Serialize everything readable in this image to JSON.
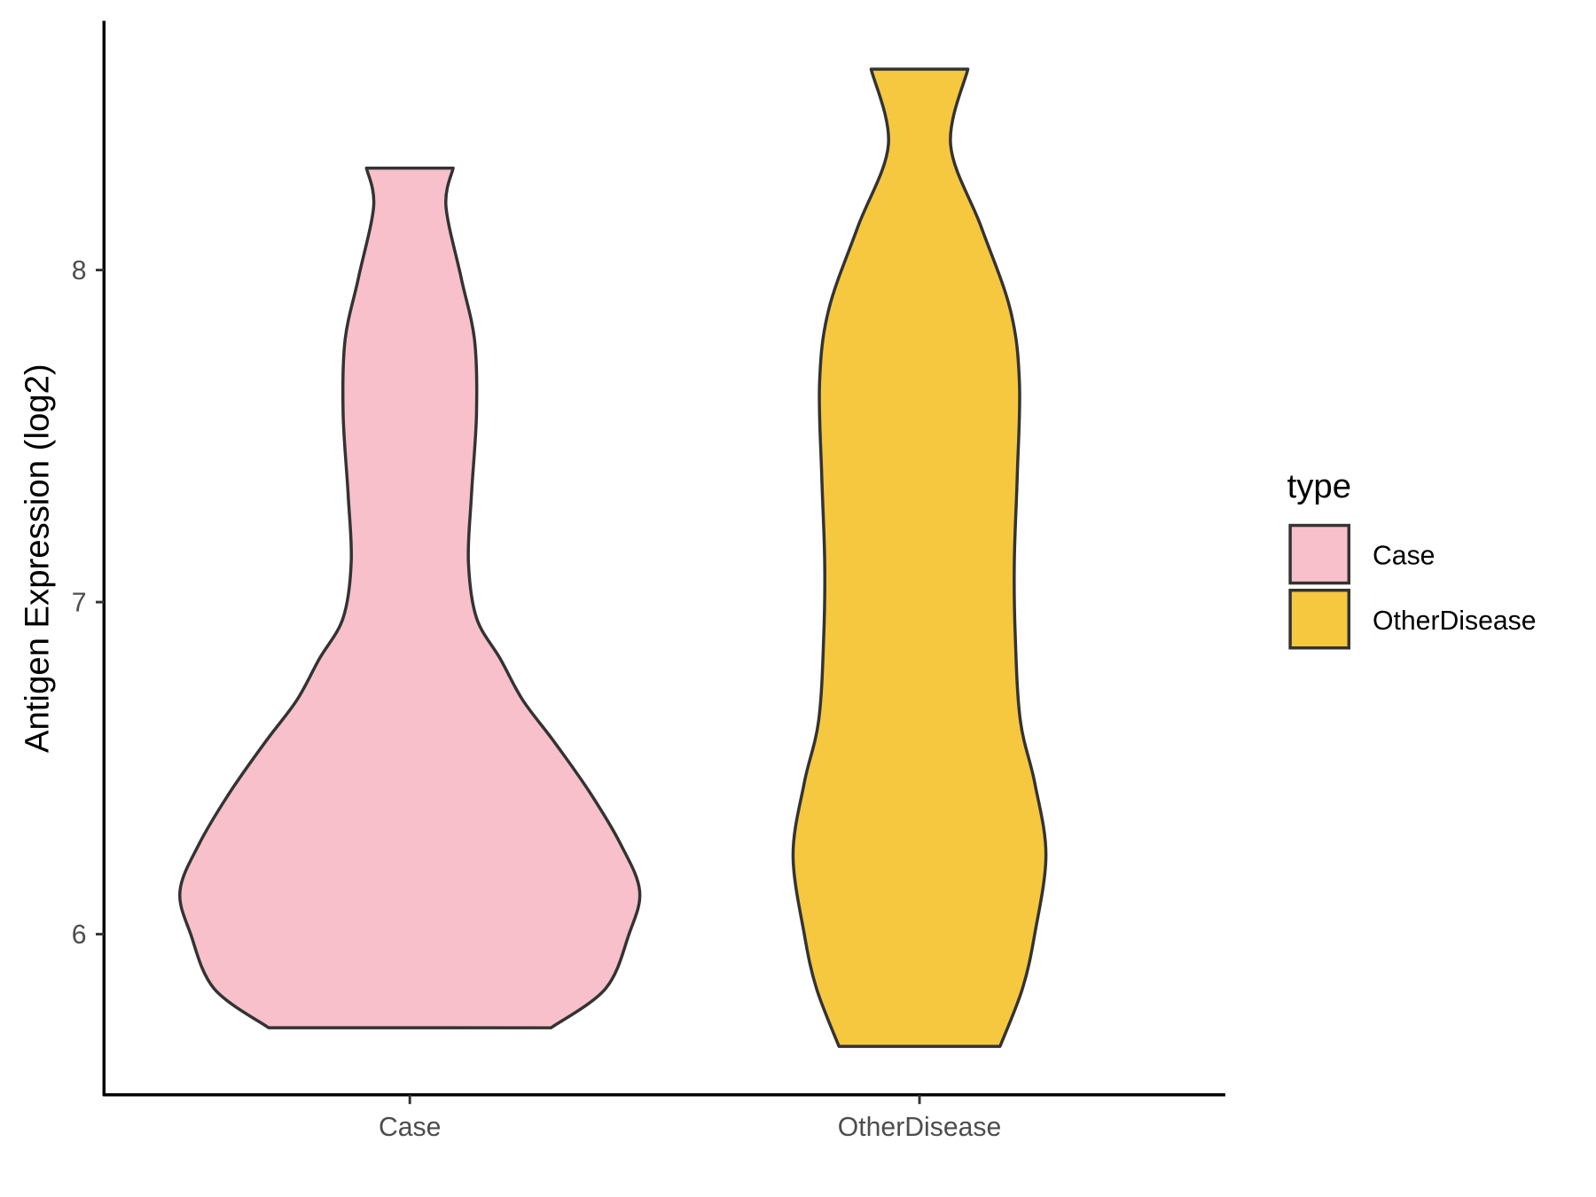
{
  "chart_data": {
    "type": "violin",
    "title": "",
    "xlabel": "",
    "ylabel": "Antigen Expression (log2)",
    "categories": [
      "Case",
      "OtherDisease"
    ],
    "yticks": [
      6,
      7,
      8
    ],
    "ylim": [
      5.52,
      8.75
    ],
    "grid": false,
    "legend": {
      "title": "type",
      "position": "right",
      "entries": [
        "Case",
        "OtherDisease"
      ]
    },
    "series": [
      {
        "name": "Case",
        "color": "#F7C0CB",
        "min": 5.72,
        "max": 8.31,
        "profile_y": [
          5.718,
          5.836,
          6.0,
          6.13,
          6.27,
          6.425,
          6.58,
          6.704,
          6.828,
          6.952,
          7.122,
          7.324,
          7.572,
          7.789,
          7.975,
          8.192,
          8.307
        ],
        "profile_halfwidth": [
          0.277,
          0.384,
          0.43,
          0.451,
          0.414,
          0.354,
          0.283,
          0.222,
          0.178,
          0.131,
          0.115,
          0.121,
          0.131,
          0.127,
          0.101,
          0.071,
          0.085
        ]
      },
      {
        "name": "OtherDisease",
        "color": "#F6C83F",
        "min": 5.66,
        "max": 8.6,
        "profile_y": [
          5.662,
          5.836,
          6.0,
          6.239,
          6.456,
          6.642,
          6.89,
          7.122,
          7.386,
          7.665,
          7.882,
          8.13,
          8.378,
          8.605
        ],
        "profile_halfwidth": [
          0.158,
          0.202,
          0.226,
          0.248,
          0.226,
          0.198,
          0.188,
          0.186,
          0.192,
          0.196,
          0.178,
          0.121,
          0.061,
          0.095
        ]
      }
    ],
    "outline_color": "#333333"
  }
}
